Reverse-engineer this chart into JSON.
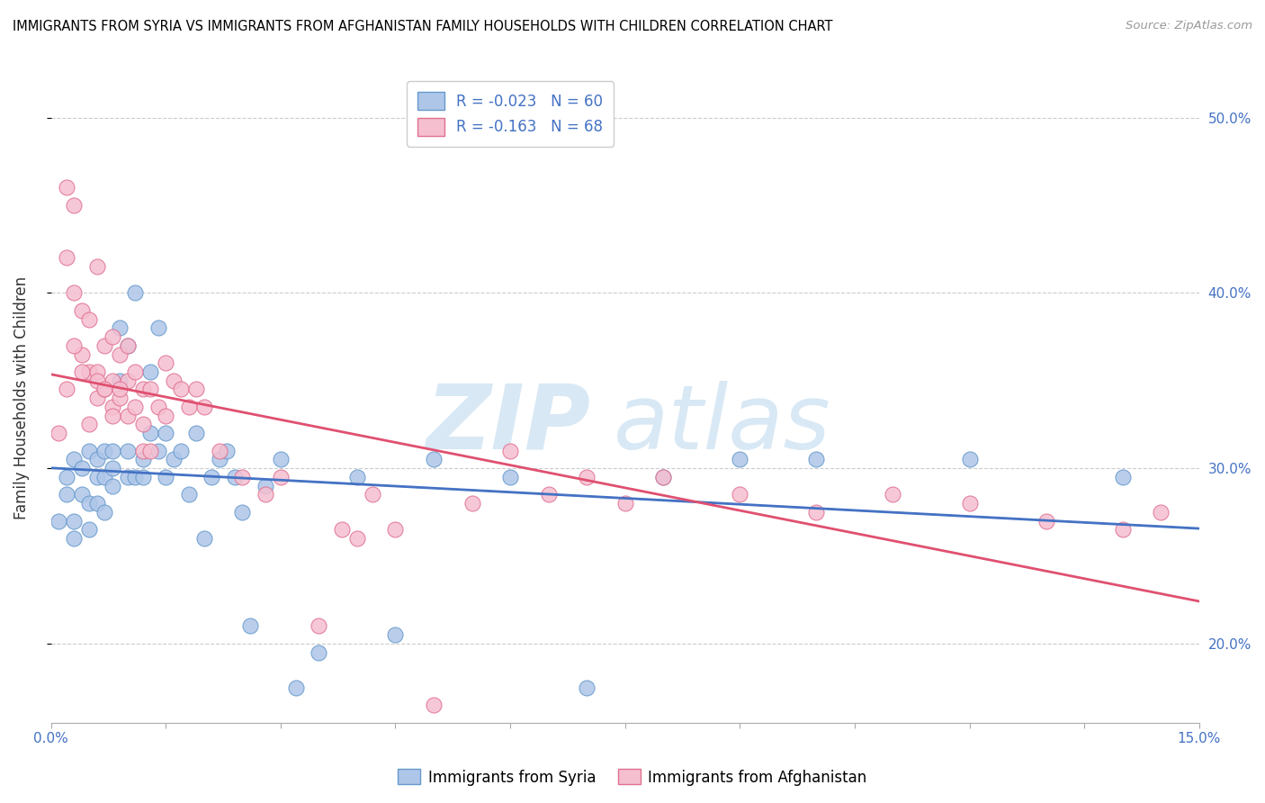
{
  "title": "IMMIGRANTS FROM SYRIA VS IMMIGRANTS FROM AFGHANISTAN FAMILY HOUSEHOLDS WITH CHILDREN CORRELATION CHART",
  "source": "Source: ZipAtlas.com",
  "ylabel": "Family Households with Children",
  "legend_syria": "Immigrants from Syria",
  "legend_afghanistan": "Immigrants from Afghanistan",
  "xlim": [
    0.0,
    0.15
  ],
  "ylim": [
    0.155,
    0.525
  ],
  "yticks": [
    0.2,
    0.3,
    0.4,
    0.5
  ],
  "ytick_labels": [
    "20.0%",
    "30.0%",
    "40.0%",
    "50.0%"
  ],
  "syria_color": "#aec6e8",
  "syria_edge_color": "#6699cc",
  "afghanistan_color": "#f5bfd0",
  "afghanistan_edge_color": "#e07090",
  "syria_line_color": "#4472c4",
  "afghanistan_line_color": "#e05070",
  "R_syria": -0.023,
  "N_syria": 60,
  "R_afghanistan": -0.163,
  "N_afghanistan": 68,
  "syria_scatter_x": [
    0.001,
    0.002,
    0.002,
    0.003,
    0.003,
    0.003,
    0.004,
    0.004,
    0.005,
    0.005,
    0.005,
    0.006,
    0.006,
    0.006,
    0.007,
    0.007,
    0.007,
    0.008,
    0.008,
    0.008,
    0.009,
    0.009,
    0.01,
    0.01,
    0.01,
    0.011,
    0.011,
    0.012,
    0.012,
    0.013,
    0.013,
    0.014,
    0.014,
    0.015,
    0.015,
    0.016,
    0.017,
    0.018,
    0.019,
    0.02,
    0.021,
    0.022,
    0.023,
    0.024,
    0.025,
    0.026,
    0.028,
    0.03,
    0.032,
    0.035,
    0.04,
    0.045,
    0.05,
    0.06,
    0.07,
    0.08,
    0.09,
    0.1,
    0.12,
    0.14
  ],
  "syria_scatter_y": [
    0.27,
    0.285,
    0.295,
    0.27,
    0.305,
    0.26,
    0.285,
    0.3,
    0.265,
    0.31,
    0.28,
    0.295,
    0.305,
    0.28,
    0.275,
    0.295,
    0.31,
    0.3,
    0.29,
    0.31,
    0.35,
    0.38,
    0.295,
    0.37,
    0.31,
    0.295,
    0.4,
    0.305,
    0.295,
    0.32,
    0.355,
    0.31,
    0.38,
    0.32,
    0.295,
    0.305,
    0.31,
    0.285,
    0.32,
    0.26,
    0.295,
    0.305,
    0.31,
    0.295,
    0.275,
    0.21,
    0.29,
    0.305,
    0.175,
    0.195,
    0.295,
    0.205,
    0.305,
    0.295,
    0.175,
    0.295,
    0.305,
    0.305,
    0.305,
    0.295
  ],
  "afghanistan_scatter_x": [
    0.001,
    0.002,
    0.002,
    0.003,
    0.003,
    0.004,
    0.004,
    0.005,
    0.005,
    0.006,
    0.006,
    0.006,
    0.007,
    0.007,
    0.008,
    0.008,
    0.008,
    0.009,
    0.009,
    0.01,
    0.01,
    0.01,
    0.011,
    0.011,
    0.012,
    0.012,
    0.012,
    0.013,
    0.013,
    0.014,
    0.015,
    0.015,
    0.016,
    0.017,
    0.018,
    0.019,
    0.02,
    0.022,
    0.025,
    0.028,
    0.03,
    0.035,
    0.038,
    0.04,
    0.042,
    0.045,
    0.05,
    0.055,
    0.06,
    0.065,
    0.07,
    0.075,
    0.08,
    0.09,
    0.1,
    0.11,
    0.12,
    0.13,
    0.14,
    0.145,
    0.002,
    0.003,
    0.004,
    0.005,
    0.006,
    0.007,
    0.008,
    0.009
  ],
  "afghanistan_scatter_y": [
    0.32,
    0.46,
    0.42,
    0.45,
    0.4,
    0.39,
    0.365,
    0.385,
    0.355,
    0.415,
    0.34,
    0.355,
    0.37,
    0.345,
    0.375,
    0.35,
    0.335,
    0.365,
    0.34,
    0.37,
    0.35,
    0.33,
    0.355,
    0.335,
    0.345,
    0.325,
    0.31,
    0.345,
    0.31,
    0.335,
    0.36,
    0.33,
    0.35,
    0.345,
    0.335,
    0.345,
    0.335,
    0.31,
    0.295,
    0.285,
    0.295,
    0.21,
    0.265,
    0.26,
    0.285,
    0.265,
    0.165,
    0.28,
    0.31,
    0.285,
    0.295,
    0.28,
    0.295,
    0.285,
    0.275,
    0.285,
    0.28,
    0.27,
    0.265,
    0.275,
    0.345,
    0.37,
    0.355,
    0.325,
    0.35,
    0.345,
    0.33,
    0.345
  ]
}
